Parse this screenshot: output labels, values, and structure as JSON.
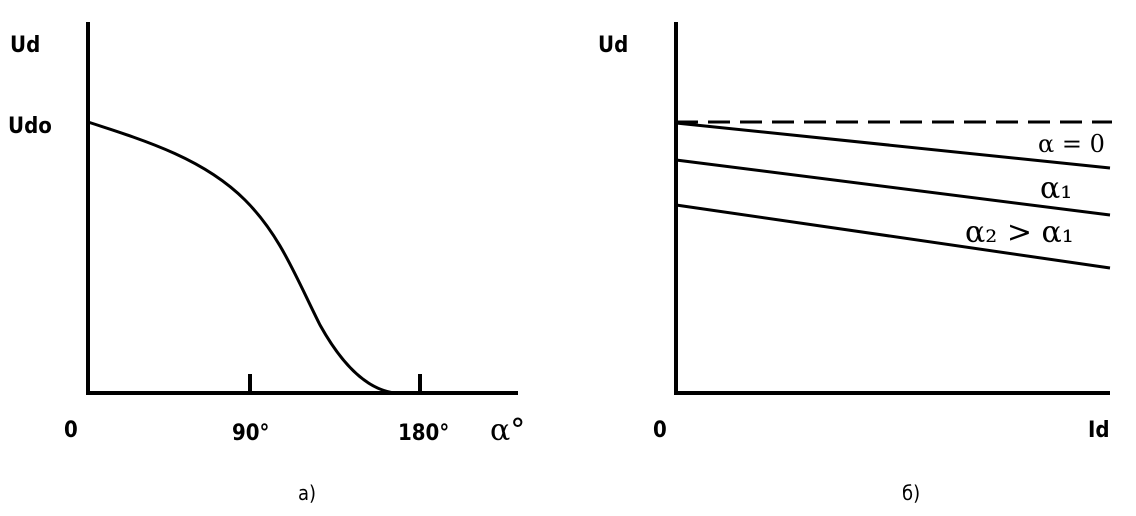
{
  "left": {
    "y_label": "Ud",
    "y_mark": "Udo",
    "origin": "0",
    "tick_1": "90°",
    "tick_2": "180°",
    "x_label": "α°",
    "caption": "а)"
  },
  "right": {
    "y_label": "Ud",
    "origin": "0",
    "x_label": "Id",
    "line_1": "α = 0",
    "line_2": "α₁",
    "line_3": "α₂ > α₁",
    "caption": "б)"
  }
}
